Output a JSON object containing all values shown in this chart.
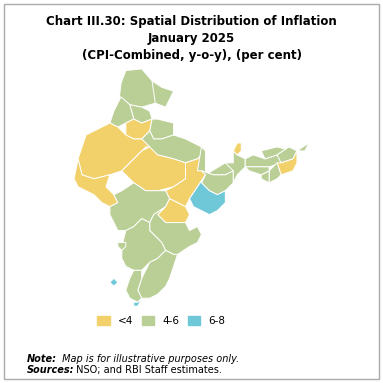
{
  "title_line1": "Chart III.30: Spatial Distribution of Inflation",
  "title_line2": "January 2025",
  "title_line3": "(CPI-Combined, y-o-y), (per cent)",
  "legend_labels": [
    "<4",
    "4-6",
    "6-8"
  ],
  "colors": {
    "lt4": "#F2D16B",
    "4to6": "#BACF96",
    "6to8": "#6FC8D8",
    "border": "#FFFFFF",
    "bg": "#FFFFFF"
  },
  "note_bold": "Note:",
  "note_rest": " Map is for illustrative purposes only.",
  "sources_bold": "Sources:",
  "sources_rest": " NSO; and RBI Staff estimates.",
  "title_fontsize": 8.5,
  "note_fontsize": 7,
  "legend_fontsize": 7.5,
  "figsize": [
    3.83,
    3.83
  ],
  "dpi": 100
}
